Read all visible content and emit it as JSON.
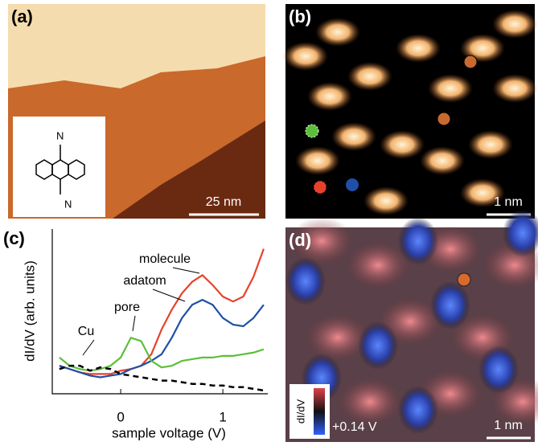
{
  "panels": [
    {
      "label": "(a)",
      "scale_bar": "25 nm",
      "inset_labels": [
        "N",
        "N"
      ]
    },
    {
      "label": "(b)",
      "scale_bar": "1 nm"
    },
    {
      "label": "(d)",
      "scale_bar": "1 nm",
      "colorbar_label": "dI/dV",
      "bias": "+0.14 V"
    }
  ],
  "chart_data": {
    "type": "line",
    "label": "(c)",
    "x_label": "sample voltage (V)",
    "y_label": "dI/dV (arb. units)",
    "x": [
      -0.6,
      -0.5,
      -0.4,
      -0.3,
      -0.2,
      -0.1,
      0,
      0.1,
      0.2,
      0.3,
      0.4,
      0.5,
      0.6,
      0.7,
      0.8,
      0.9,
      1.0,
      1.1,
      1.2,
      1.3,
      1.4
    ],
    "xlim": [
      -0.67,
      1.44
    ],
    "xticks": [
      0,
      1
    ],
    "ylim": [
      0,
      10
    ],
    "series": [
      {
        "name": "molecule",
        "color": "#e8412a",
        "values": [
          1.7,
          1.5,
          1.3,
          1.2,
          1.2,
          1.2,
          1.4,
          1.5,
          1.7,
          2.4,
          3.9,
          5.1,
          6.1,
          6.8,
          7.2,
          6.6,
          5.9,
          5.6,
          5.9,
          7.1,
          8.8
        ]
      },
      {
        "name": "adatom",
        "color": "#1f4fa8",
        "values": [
          1.7,
          1.5,
          1.3,
          1.1,
          1.0,
          1.1,
          1.2,
          1.5,
          1.7,
          2.0,
          2.4,
          3.4,
          4.6,
          5.4,
          5.7,
          5.4,
          4.6,
          4.2,
          4.1,
          4.6,
          5.4
        ]
      },
      {
        "name": "pore",
        "color": "#5cbf3a",
        "values": [
          2.2,
          1.7,
          1.5,
          1.4,
          1.5,
          1.7,
          2.2,
          3.4,
          3.2,
          2.0,
          1.6,
          1.7,
          2.0,
          2.1,
          2.2,
          2.2,
          2.3,
          2.3,
          2.4,
          2.5,
          2.7
        ]
      },
      {
        "name": "Cu",
        "color": "#000000",
        "dashed": true,
        "values": [
          1.5,
          1.7,
          1.7,
          1.4,
          1.6,
          1.5,
          1.2,
          1.1,
          1.0,
          0.9,
          0.8,
          0.8,
          0.7,
          0.6,
          0.6,
          0.5,
          0.5,
          0.4,
          0.4,
          0.3,
          0.2
        ]
      }
    ]
  }
}
